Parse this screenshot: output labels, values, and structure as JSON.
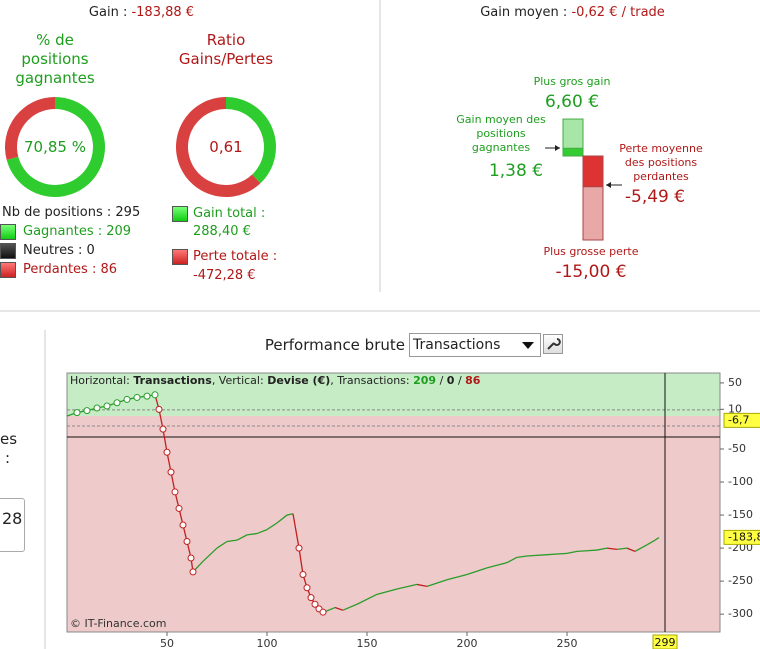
{
  "gain": {
    "label": "Gain :",
    "value": "-183,88 €"
  },
  "win_rate": {
    "title": "% de positions gagnantes",
    "value": 70.85,
    "label": "70,85 %"
  },
  "ratio": {
    "title": "Ratio Gains/Pertes",
    "value": 0.61,
    "label": "0,61"
  },
  "counts": {
    "total": "Nb de positions : 295",
    "gagnantes": "Gagnantes : 209",
    "neutres": "Neutres : 0",
    "perdantes": "Perdantes : 86"
  },
  "totals": {
    "gain_label": "Gain total :",
    "gain_value": 288.4,
    "gain_text": "288,40 €",
    "perte_label": "Perte totale :",
    "perte_value": -472.28,
    "perte_text": "-472,28 €"
  },
  "average": {
    "label": "Gain moyen :",
    "value": "-0,62 € / trade"
  },
  "extremes": {
    "max_gain": {
      "label": "Plus gros gain",
      "value": 6.6,
      "text": "6,60 €"
    },
    "avg_gain": {
      "label": "Gain moyen des positions gagnantes",
      "value": 1.38,
      "text": "1,38 €"
    },
    "avg_loss": {
      "label": "Perte moyenne des positions perdantes",
      "value": -5.49,
      "text": "-5,49 €"
    },
    "max_loss": {
      "label": "Plus grosse perte",
      "value": -15.0,
      "text": "-15,00 €"
    }
  },
  "performance": {
    "title": "Performance brute",
    "select": "Transactions"
  },
  "side": {
    "t1": "es",
    "t2": ":",
    "t3": "28"
  },
  "chart_data": {
    "type": "line",
    "header": [
      "Horizontal: ",
      "Transactions",
      ", Vertical: ",
      "Devise (€)",
      ", Transactions: ",
      "209",
      " / ",
      "0",
      " / ",
      "86"
    ],
    "watermark": "© IT-Finance.com",
    "x": [
      0,
      5,
      10,
      15,
      20,
      25,
      30,
      35,
      40,
      44,
      46,
      48,
      50,
      52,
      54,
      56,
      58,
      60,
      62,
      63,
      68,
      75,
      80,
      85,
      90,
      95,
      100,
      105,
      110,
      113,
      116,
      118,
      120,
      122,
      124,
      126,
      128,
      130,
      134,
      138,
      145,
      155,
      165,
      175,
      180,
      190,
      200,
      210,
      220,
      225,
      230,
      240,
      250,
      255,
      260,
      265,
      270,
      275,
      280,
      284,
      290,
      294,
      296
    ],
    "values": [
      0,
      5,
      8,
      12,
      15,
      20,
      25,
      28,
      30,
      32,
      10,
      -20,
      -55,
      -85,
      -115,
      -140,
      -165,
      -190,
      -215,
      -236,
      -220,
      -200,
      -190,
      -188,
      -180,
      -178,
      -172,
      -162,
      -150,
      -148,
      -200,
      -240,
      -260,
      -275,
      -285,
      -292,
      -297,
      -295,
      -290,
      -294,
      -285,
      -270,
      -262,
      -255,
      -258,
      -248,
      -240,
      -230,
      -222,
      -214,
      -212,
      -210,
      -208,
      -205,
      -204,
      -203,
      -200,
      -202,
      -200,
      -205,
      -195,
      -188,
      -184
    ],
    "up_color": "#2a9d2a",
    "down_color": "#c02020",
    "xlim": [
      0,
      326.5
    ],
    "ylim": [
      -327,
      65
    ],
    "xticks": [
      50,
      100,
      150,
      200,
      250
    ],
    "yticks": [
      50,
      10,
      -50,
      -100,
      -150,
      -200,
      -250,
      -300
    ],
    "cursor_x": {
      "value": 299,
      "label": "299"
    },
    "cursor_y": [
      {
        "value": -6.7,
        "label": "-6,7"
      },
      {
        "value": -183.8,
        "label": "-183,8"
      }
    ]
  }
}
